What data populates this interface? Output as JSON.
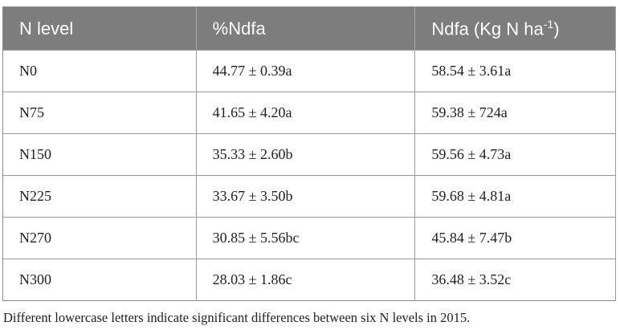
{
  "table": {
    "header": [
      "N level",
      "%Ndfa",
      {
        "text": "Ndfa (Kg N ha",
        "sup": "-1",
        "after": ")"
      }
    ],
    "rows": [
      [
        "N0",
        "44.77 ± 0.39a",
        "58.54 ± 3.61a"
      ],
      [
        "N75",
        "41.65 ± 4.20a",
        "59.38 ± 724a"
      ],
      [
        "N150",
        "35.33 ± 2.60b",
        "59.56 ± 4.73a"
      ],
      [
        "N225",
        "33.67 ± 3.50b",
        "59.68 ± 4.81a"
      ],
      [
        "N270",
        "30.85 ± 5.56bc",
        "45.84 ± 7.47b"
      ],
      [
        "N300",
        "28.03 ± 1.86c",
        "36.48 ± 3.52c"
      ]
    ]
  },
  "footnote": "Different lowercase letters indicate significant differences between six N levels in 2015."
}
